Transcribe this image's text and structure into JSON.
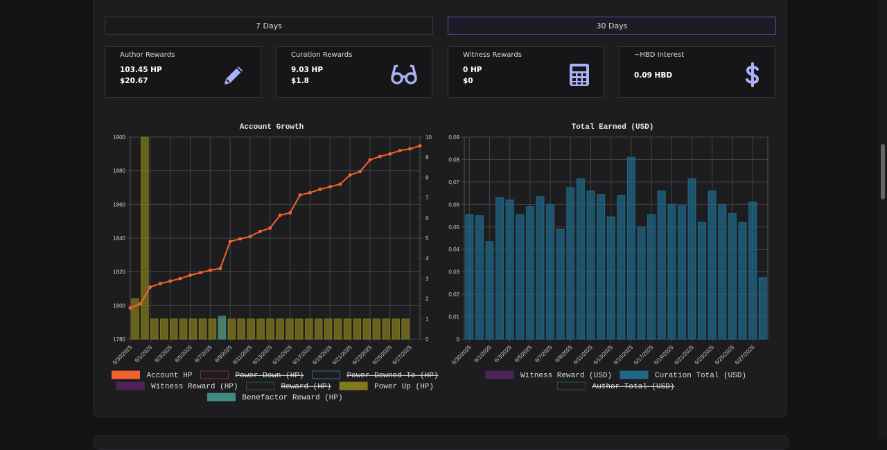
{
  "tabs": [
    "7 Days",
    "30 Days"
  ],
  "cards": [
    {
      "title": "Author Rewards",
      "lines": [
        "103.45 HP",
        "$20.67"
      ]
    },
    {
      "title": "Curation Rewards",
      "lines": [
        "9.03 HP",
        "$1.8"
      ]
    },
    {
      "title": "Witness Rewards",
      "lines": [
        "0 HP",
        "$0"
      ]
    },
    {
      "title": "~HBD Interest",
      "lines": [
        "0.09 HBD"
      ]
    }
  ],
  "chart_data": [
    {
      "type": "line",
      "title": "Account Growth",
      "categories": [
        "5/30/2025",
        null,
        "6/1/2025",
        null,
        "6/3/2025",
        null,
        "6/5/2025",
        null,
        "6/7/2025",
        null,
        "6/9/2025",
        null,
        "6/11/2025",
        null,
        "6/13/2025",
        null,
        "6/15/2025",
        null,
        "6/17/2025",
        null,
        "6/19/2025",
        null,
        "6/21/2025",
        null,
        "6/23/2025",
        null,
        "6/25/2025",
        null,
        "6/27/2025",
        null
      ],
      "ylim": [
        1780,
        1900
      ],
      "yticks": [
        1780,
        1800,
        1820,
        1840,
        1860,
        1880,
        1900
      ],
      "y2lim": [
        0,
        10
      ],
      "y2ticks": [
        0,
        1,
        2,
        3,
        4,
        5,
        6,
        7,
        8,
        9,
        10
      ],
      "grid": true,
      "series": [
        {
          "name": "Account HP",
          "type": "line",
          "color": "#f4622e",
          "values": [
            1798.5,
            1801,
            1811,
            1813,
            1814.5,
            1816,
            1818,
            1819.5,
            1821,
            1822,
            1838,
            1839.6,
            1841,
            1844,
            1846,
            1853.6,
            1855,
            1865.6,
            1867,
            1869,
            1870.5,
            1872,
            1877.5,
            1879.5,
            1886.5,
            1888.5,
            1890,
            1892,
            1893,
            1894.8
          ]
        },
        {
          "name": "Power Down (HP)",
          "type": "bar",
          "color": "#8a2a2a",
          "hidden": true
        },
        {
          "name": "Power Downed To (HP)",
          "type": "bar",
          "color": "#3b6a95",
          "hidden": true
        },
        {
          "name": "Witness Reward (HP)",
          "type": "bar",
          "color": "#4e2456"
        },
        {
          "name": "Reward (HP)",
          "type": "bar",
          "color": "#1f5a34",
          "hidden": true
        },
        {
          "name": "Power Up (HP)",
          "type": "bar",
          "axis": "y2",
          "color": "#807a1c",
          "values": [
            2,
            10,
            1,
            1,
            1,
            1,
            1,
            1,
            1,
            1,
            1,
            1,
            1,
            1,
            1,
            1,
            1,
            1,
            1,
            1,
            1,
            1,
            1,
            1,
            1,
            1,
            1,
            1,
            1,
            null
          ]
        },
        {
          "name": "Benefactor Reward (HP)",
          "type": "bar",
          "axis": "y2",
          "color": "#3f8a84",
          "values": [
            0,
            0,
            0,
            0,
            0,
            0,
            0,
            0,
            0,
            1.15,
            0,
            0,
            0,
            0,
            0,
            0,
            0,
            0,
            0,
            0,
            0,
            0,
            0,
            0,
            0,
            0,
            0,
            0,
            0,
            null
          ]
        }
      ]
    },
    {
      "type": "bar",
      "title": "Total Earned (USD)",
      "categories": [
        "5/30/2025",
        null,
        "6/1/2025",
        null,
        "6/3/2025",
        null,
        "6/5/2025",
        null,
        "6/7/2025",
        null,
        "6/9/2025",
        null,
        "6/11/2025",
        null,
        "6/13/2025",
        null,
        "6/15/2025",
        null,
        "6/17/2025",
        null,
        "6/19/2025",
        null,
        "6/21/2025",
        null,
        "6/23/2025",
        null,
        "6/25/2025",
        null,
        "6/27/2025",
        null
      ],
      "ylim": [
        0,
        0.09
      ],
      "yticks": [
        0,
        {
          "value": 0.01,
          "label": "0,01"
        },
        {
          "value": 0.02,
          "label": "0,02"
        },
        {
          "value": 0.03,
          "label": "0,03"
        },
        {
          "value": 0.04,
          "label": "0,04"
        },
        {
          "value": 0.05,
          "label": "0,05"
        },
        {
          "value": 0.06,
          "label": "0,06"
        },
        {
          "value": 0.07,
          "label": "0,07"
        },
        {
          "value": 0.08,
          "label": "0,08"
        },
        {
          "value": 0.09,
          "label": "0,09"
        }
      ],
      "grid": true,
      "series": [
        {
          "name": "Witness Reward (USD)",
          "type": "bar",
          "color": "#4e2456"
        },
        {
          "name": "Curation Total (USD)",
          "type": "bar",
          "color": "#1f6784",
          "values": [
            0.0555,
            0.055,
            0.0435,
            0.063,
            0.062,
            0.0555,
            0.059,
            0.0635,
            0.06,
            0.049,
            0.0675,
            0.0715,
            0.066,
            0.0645,
            0.0545,
            0.064,
            0.081,
            0.05,
            0.0555,
            0.066,
            0.06,
            0.0595,
            0.0715,
            0.052,
            0.066,
            0.06,
            0.056,
            0.052,
            0.061,
            0.0275
          ]
        },
        {
          "name": "Author Total (USD)",
          "type": "bar",
          "color": "#1f5a34",
          "hidden": true
        }
      ]
    }
  ]
}
